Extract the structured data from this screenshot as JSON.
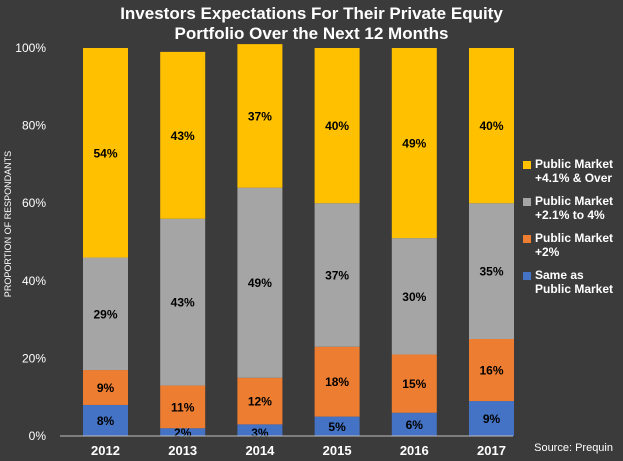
{
  "title_lines": [
    "Investors Expectations For Their Private Equity",
    "Portfolio Over the Next 12 Months"
  ],
  "source": "Source: Prequin",
  "ylabel": "PROPORTION OF RESPONDANTS",
  "legend": [
    {
      "lines": [
        "Public Market",
        "+4.1% & Over"
      ],
      "color": "#FFC000"
    },
    {
      "lines": [
        "Public Market",
        "+2.1% to 4%"
      ],
      "color": "#A5A5A5"
    },
    {
      "lines": [
        "Public Market",
        "+2%"
      ],
      "color": "#ED7D31"
    },
    {
      "lines": [
        "Same as",
        "Public Market"
      ],
      "color": "#4472C4"
    }
  ],
  "chart_data": {
    "type": "bar",
    "stacked": true,
    "categories": [
      "2012",
      "2013",
      "2014",
      "2015",
      "2016",
      "2017"
    ],
    "series": [
      {
        "name": "Same as Public Market",
        "color": "#4472C4",
        "values": [
          8,
          2,
          3,
          5,
          6,
          9
        ],
        "labels": [
          "8%",
          "2%",
          "3%",
          "5%",
          "6%",
          "9%"
        ]
      },
      {
        "name": "Public Market +2%",
        "color": "#ED7D31",
        "values": [
          9,
          11,
          12,
          18,
          15,
          16
        ],
        "labels": [
          "9%",
          "11%",
          "12%",
          "18%",
          "15%",
          "16%"
        ]
      },
      {
        "name": "Public Market +2.1% to 4%",
        "color": "#A5A5A5",
        "values": [
          29,
          43,
          49,
          37,
          30,
          35
        ],
        "labels": [
          "29%",
          "43%",
          "49%",
          "37%",
          "30%",
          "35%"
        ]
      },
      {
        "name": "Public Market +4.1% & Over",
        "color": "#FFC000",
        "values": [
          54,
          43,
          37,
          40,
          49,
          40
        ],
        "labels": [
          "54%",
          "43%",
          "37%",
          "40%",
          "49%",
          "40%"
        ]
      }
    ],
    "ylim": [
      0,
      100
    ],
    "yticks": [
      "0%",
      "20%",
      "40%",
      "60%",
      "80%",
      "100%"
    ],
    "grid": false,
    "legend_position": "right"
  }
}
